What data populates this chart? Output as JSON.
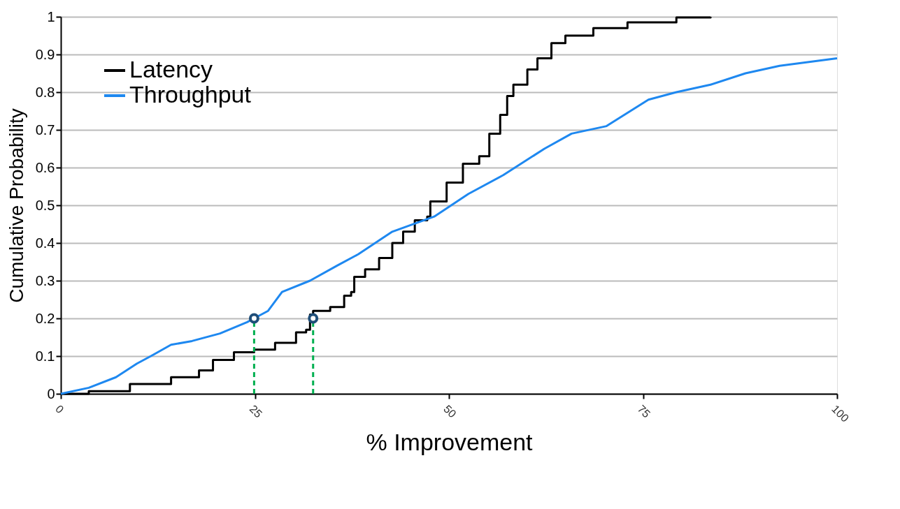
{
  "chart_data": {
    "type": "step",
    "xlabel": "% Improvement",
    "ylabel": "Cumulative Probability",
    "xlim": [
      0,
      100
    ],
    "xticks": [
      0,
      25,
      50,
      75,
      100
    ],
    "ylim": [
      0,
      1
    ],
    "yticks": [
      0,
      0.1,
      0.2,
      0.3,
      0.4,
      0.5,
      0.6,
      0.7,
      0.8,
      0.9,
      1
    ],
    "grid": "y",
    "legend": "top left",
    "series": [
      {
        "name": "Latency",
        "color": "#000000",
        "x": [
          0,
          3.6,
          8.9,
          14.2,
          17.8,
          19.6,
          22.3,
          24.9,
          27.6,
          30.3,
          31.6,
          32.1,
          32.5,
          34.7,
          36.5,
          37.4,
          37.8,
          39.2,
          41.0,
          42.7,
          44.1,
          45.6,
          47.2,
          47.6,
          49.4,
          49.7,
          51.6,
          51.8,
          53.9,
          55.2,
          56.6,
          57.5,
          58.3,
          60.1,
          61.4,
          63.2,
          65.0,
          68.6,
          73.0,
          79.3,
          83.7
        ],
        "values": [
          0,
          0.007,
          0.026,
          0.044,
          0.062,
          0.09,
          0.11,
          0.117,
          0.135,
          0.163,
          0.17,
          0.21,
          0.22,
          0.23,
          0.26,
          0.27,
          0.31,
          0.33,
          0.36,
          0.4,
          0.43,
          0.46,
          0.47,
          0.51,
          0.51,
          0.56,
          0.56,
          0.61,
          0.63,
          0.69,
          0.74,
          0.79,
          0.82,
          0.86,
          0.89,
          0.93,
          0.95,
          0.97,
          0.985,
          0.998,
          1.0
        ]
      },
      {
        "name": "Throughput",
        "color": "#1e88f0",
        "type": "line",
        "x": [
          0,
          3.6,
          7.1,
          9.8,
          11.6,
          14.2,
          16.9,
          20.5,
          24.0,
          24.9,
          26.7,
          28.5,
          32.1,
          35.6,
          38.3,
          42.7,
          48.1,
          52.5,
          57.0,
          62.3,
          65.8,
          70.3,
          75.7,
          79.3,
          83.7,
          88.2,
          92.6,
          100
        ],
        "values": [
          0,
          0.016,
          0.044,
          0.08,
          0.1,
          0.13,
          0.14,
          0.16,
          0.19,
          0.2,
          0.22,
          0.27,
          0.3,
          0.34,
          0.37,
          0.43,
          0.47,
          0.53,
          0.58,
          0.65,
          0.69,
          0.71,
          0.78,
          0.8,
          0.82,
          0.85,
          0.87,
          0.89
        ]
      },
      {
        "color": "#00b050",
        "type": "line",
        "line_style": "dashed",
        "x": [
          24.9,
          24.9
        ],
        "values": [
          0,
          0.2
        ]
      },
      {
        "color": "#00b050",
        "type": "line",
        "line_style": "dashed",
        "x": [
          32.5,
          32.5
        ],
        "values": [
          0,
          0.2
        ]
      },
      {
        "color": "#1f4e79",
        "type": "scatter",
        "marker": "circle",
        "x": [
          24.9,
          32.5
        ],
        "values": [
          0.2,
          0.2
        ]
      }
    ]
  }
}
